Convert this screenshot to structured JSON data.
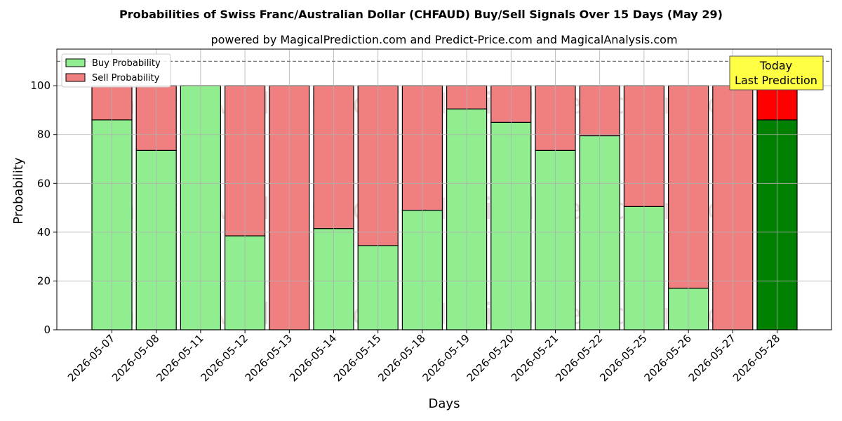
{
  "chart_data": {
    "type": "bar",
    "stacked": true,
    "title": "Probabilities of Swiss Franc/Australian Dollar (CHFAUD) Buy/Sell Signals Over 15 Days (May 29)",
    "subtitle": "powered by MagicalPrediction.com and Predict-Price.com and MagicalAnalysis.com",
    "xlabel": "Days",
    "ylabel": "Probability",
    "ylim": [
      0,
      115
    ],
    "yticks": [
      0,
      20,
      40,
      60,
      80,
      100
    ],
    "reference_line": 110,
    "grid": true,
    "legend_position": "top-left",
    "categories": [
      "2026-05-07",
      "2026-05-08",
      "2026-05-11",
      "2026-05-12",
      "2026-05-13",
      "2026-05-14",
      "2026-05-15",
      "2026-05-18",
      "2026-05-19",
      "2026-05-20",
      "2026-05-21",
      "2026-05-22",
      "2026-05-25",
      "2026-05-26",
      "2026-05-27",
      "2026-05-28"
    ],
    "series": [
      {
        "name": "Buy Probability",
        "color": "#90ee90",
        "values": [
          86,
          73.5,
          100,
          38.5,
          0,
          41.5,
          34.5,
          49,
          90.5,
          85,
          73.5,
          79.5,
          50.5,
          17,
          0,
          86
        ]
      },
      {
        "name": "Sell Probability",
        "color": "#f08080",
        "values": [
          14,
          26.5,
          0,
          61.5,
          100,
          58.5,
          65.5,
          51,
          9.5,
          15,
          26.5,
          20.5,
          49.5,
          83,
          100,
          14
        ]
      }
    ],
    "highlight": {
      "index": 15,
      "buy_color": "#008000",
      "sell_color": "#ff0000",
      "label_line1": "Today",
      "label_line2": "Last Prediction"
    },
    "watermarks": [
      "MagicalAnalysis.com",
      "MagicalPrediction.com"
    ]
  }
}
